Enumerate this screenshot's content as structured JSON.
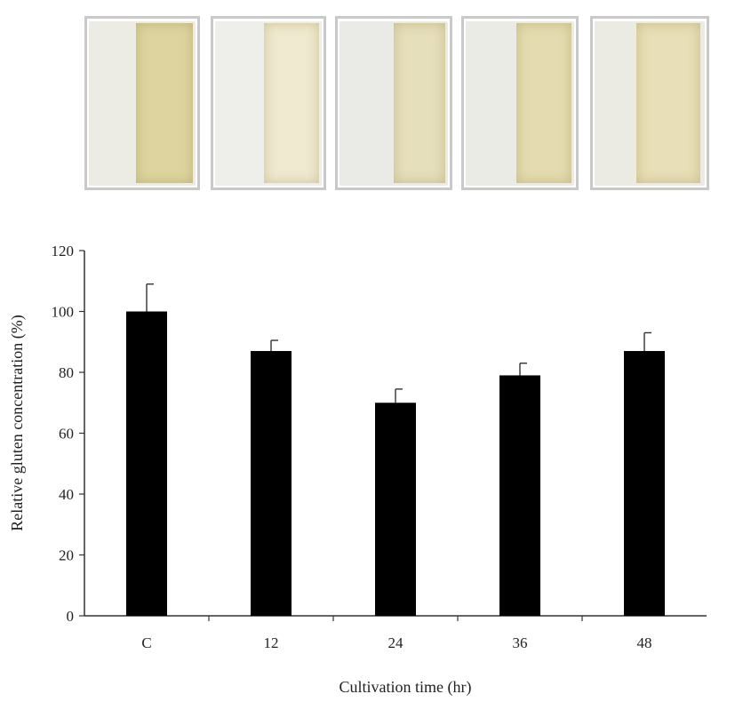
{
  "colors": {
    "bar": "#000000",
    "axis": "#333333",
    "error_bar": "#333333",
    "photo_paper": "#ecece6",
    "photo_pad_tints": [
      "#ddd4a0",
      "#f0ead0",
      "#e6dfbc",
      "#e4dcb0",
      "#e8dfb8"
    ]
  },
  "photos": [
    {
      "name": "sample-photo-c"
    },
    {
      "name": "sample-photo-12"
    },
    {
      "name": "sample-photo-24"
    },
    {
      "name": "sample-photo-36"
    },
    {
      "name": "sample-photo-48"
    }
  ],
  "chart_data": {
    "type": "bar",
    "categories": [
      "C",
      "12",
      "24",
      "36",
      "48"
    ],
    "values": [
      100,
      87,
      70,
      79,
      87
    ],
    "errors": [
      9,
      3.5,
      4.5,
      4,
      6
    ],
    "xlabel": "Cultivation  time (hr)",
    "ylabel": "Relative  gluten  concentration  (%)",
    "ylim": [
      0,
      120
    ],
    "yticks": [
      0,
      20,
      40,
      60,
      80,
      100,
      120
    ],
    "grid": false,
    "legend": "none"
  }
}
